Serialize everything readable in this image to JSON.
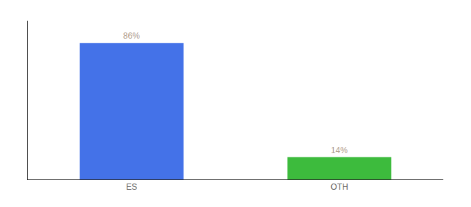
{
  "chart_data": {
    "type": "bar",
    "categories": [
      "ES",
      "OTH"
    ],
    "values": [
      86,
      14
    ],
    "value_labels": [
      "86%",
      "14%"
    ],
    "colors": [
      "#4472e8",
      "#3dbb3d"
    ],
    "ylim": [
      0,
      100
    ],
    "data_labels": true,
    "tick_labels": "x",
    "grid": false
  }
}
